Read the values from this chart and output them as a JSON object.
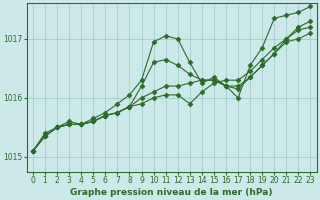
{
  "title": "Graphe pression niveau de la mer (hPa)",
  "bg_color": "#cce8e8",
  "line_color": "#2d6a2d",
  "grid_color": "#9fc8c8",
  "xlim": [
    -0.5,
    23.5
  ],
  "ylim": [
    1014.75,
    1017.6
  ],
  "yticks": [
    1015,
    1016,
    1017
  ],
  "xticks": [
    0,
    1,
    2,
    3,
    4,
    5,
    6,
    7,
    8,
    9,
    10,
    11,
    12,
    13,
    14,
    15,
    16,
    17,
    18,
    19,
    20,
    21,
    22,
    23
  ],
  "series": [
    [
      1015.1,
      1015.4,
      1015.5,
      1015.6,
      1015.55,
      1015.65,
      1015.75,
      1015.9,
      1016.05,
      1016.3,
      1016.95,
      1017.05,
      1017.0,
      1016.6,
      1016.25,
      1016.35,
      1016.2,
      1016.0,
      1016.55,
      1016.85,
      1017.35,
      1017.4,
      1017.45,
      1017.55
    ],
    [
      1015.1,
      1015.35,
      1015.5,
      1015.55,
      1015.55,
      1015.6,
      1015.7,
      1015.75,
      1015.85,
      1015.9,
      1016.0,
      1016.05,
      1016.05,
      1015.9,
      1016.1,
      1016.25,
      1016.3,
      1016.3,
      1016.45,
      1016.65,
      1016.85,
      1017.0,
      1017.15,
      1017.2
    ],
    [
      1015.1,
      1015.35,
      1015.5,
      1015.55,
      1015.55,
      1015.6,
      1015.7,
      1015.75,
      1015.85,
      1016.2,
      1016.6,
      1016.65,
      1016.55,
      1016.4,
      1016.3,
      1016.3,
      1016.2,
      1016.15,
      1016.35,
      1016.55,
      1016.75,
      1017.0,
      1017.2,
      1017.3
    ],
    [
      1015.1,
      1015.35,
      1015.5,
      1015.55,
      1015.55,
      1015.6,
      1015.7,
      1015.75,
      1015.85,
      1016.0,
      1016.1,
      1016.2,
      1016.2,
      1016.25,
      1016.3,
      1016.3,
      1016.2,
      1016.2,
      1016.35,
      1016.55,
      1016.75,
      1016.95,
      1017.0,
      1017.1
    ]
  ],
  "tick_fontsize": 5.5,
  "label_fontsize": 6.5,
  "marker": "D",
  "markersize": 2.5,
  "linewidth": 0.8
}
